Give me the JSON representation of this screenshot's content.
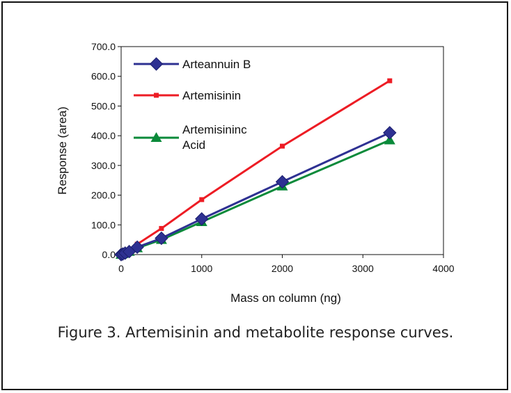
{
  "caption": "Figure 3. Artemisinin and metabolite response curves.",
  "chart_data": {
    "type": "line",
    "title": "",
    "xlabel": "Mass on column (ng)",
    "ylabel": "Response (area)",
    "xlim": [
      0,
      4000
    ],
    "ylim": [
      0,
      700
    ],
    "xticks": [
      "0",
      "1000",
      "2000",
      "3000",
      "4000"
    ],
    "yticks": [
      "0.0",
      "100.0",
      "200.0",
      "300.0",
      "400.0",
      "500.0",
      "600.0",
      "700.0"
    ],
    "grid": false,
    "legend_position": "top-left",
    "series": [
      {
        "name": "Arteannuin B",
        "color": "#2e3192",
        "marker": "diamond",
        "x": [
          0,
          20,
          50,
          100,
          200,
          500,
          1000,
          2000,
          3333
        ],
        "y": [
          0,
          2,
          5,
          10,
          25,
          55,
          120,
          245,
          410
        ]
      },
      {
        "name": "Artemisinin",
        "color": "#ed1c24",
        "marker": "square",
        "x": [
          0,
          20,
          50,
          100,
          200,
          500,
          1000,
          2000,
          3333
        ],
        "y": [
          0,
          3,
          8,
          15,
          35,
          88,
          185,
          365,
          585
        ]
      },
      {
        "name": "Artemisininc Acid",
        "color": "#0a8a3a",
        "marker": "triangle",
        "x": [
          0,
          20,
          50,
          100,
          200,
          500,
          1000,
          2000,
          3333
        ],
        "y": [
          0,
          2,
          5,
          10,
          22,
          50,
          110,
          230,
          385
        ]
      }
    ]
  }
}
